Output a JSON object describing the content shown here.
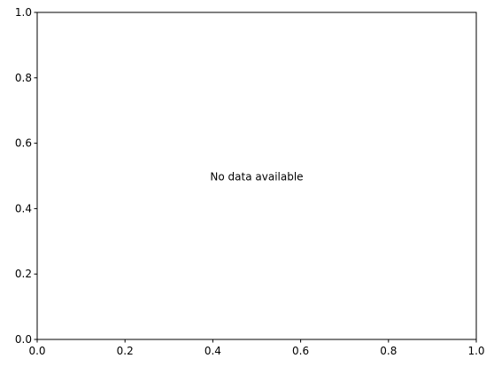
{
  "chart_data": {
    "type": "line",
    "series": [],
    "xlim": [
      0.0,
      1.0
    ],
    "ylim": [
      0.0,
      1.0
    ],
    "xticks": [
      0.0,
      0.2,
      0.4,
      0.6,
      0.8,
      1.0
    ],
    "yticks": [
      0.0,
      0.2,
      0.4,
      0.6,
      0.8,
      1.0
    ],
    "xtick_labels": [
      "0.0",
      "0.2",
      "0.4",
      "0.6",
      "0.8",
      "1.0"
    ],
    "ytick_labels": [
      "0.0",
      "0.2",
      "0.4",
      "0.6",
      "0.8",
      "1.0"
    ],
    "annotation": "No data available",
    "grid": false
  }
}
